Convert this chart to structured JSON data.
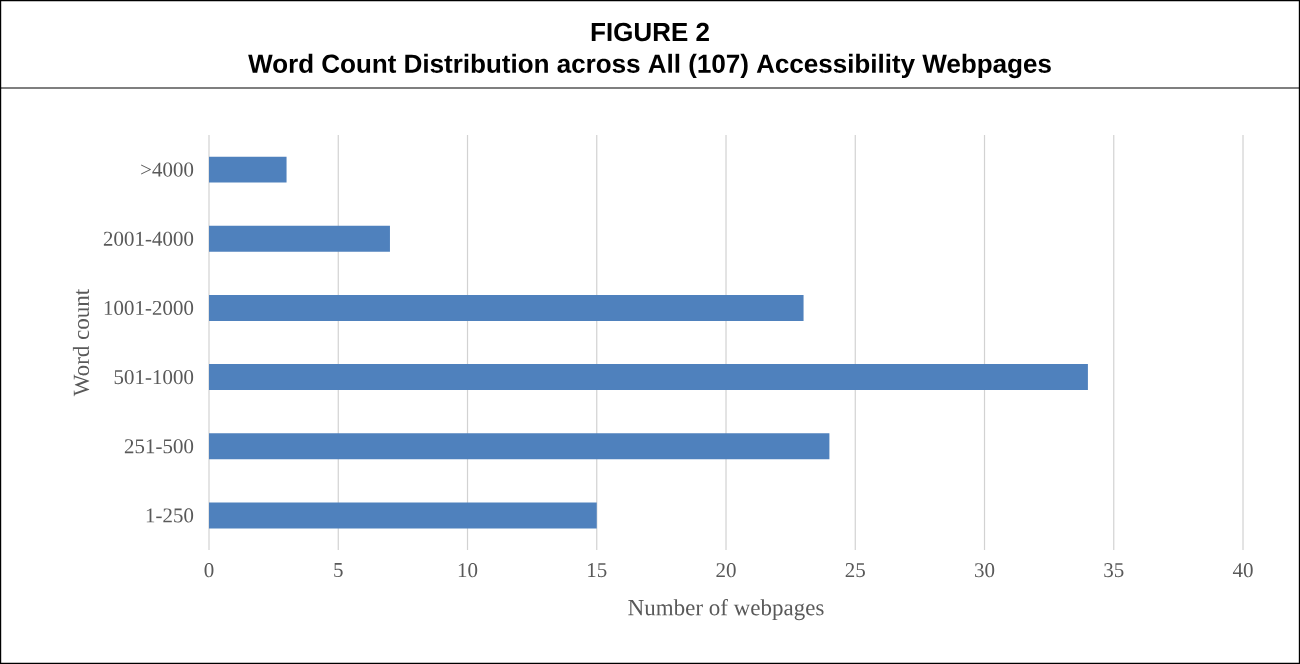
{
  "chart_data": {
    "type": "bar",
    "orientation": "horizontal",
    "title": "FIGURE 2",
    "subtitle": "Word Count Distribution across All (107) Accessibility Webpages",
    "categories": [
      ">4000",
      "2001-4000",
      "1001-2000",
      "501-1000",
      "251-500",
      "1-250"
    ],
    "values": [
      3,
      7,
      23,
      34,
      24,
      15
    ],
    "color": "#4f81bd",
    "xlabel": "Number of webpages",
    "ylabel": "Word count",
    "xlim": [
      0,
      40
    ],
    "xticks": [
      0,
      5,
      10,
      15,
      20,
      25,
      30,
      35,
      40
    ],
    "grid": "x"
  }
}
